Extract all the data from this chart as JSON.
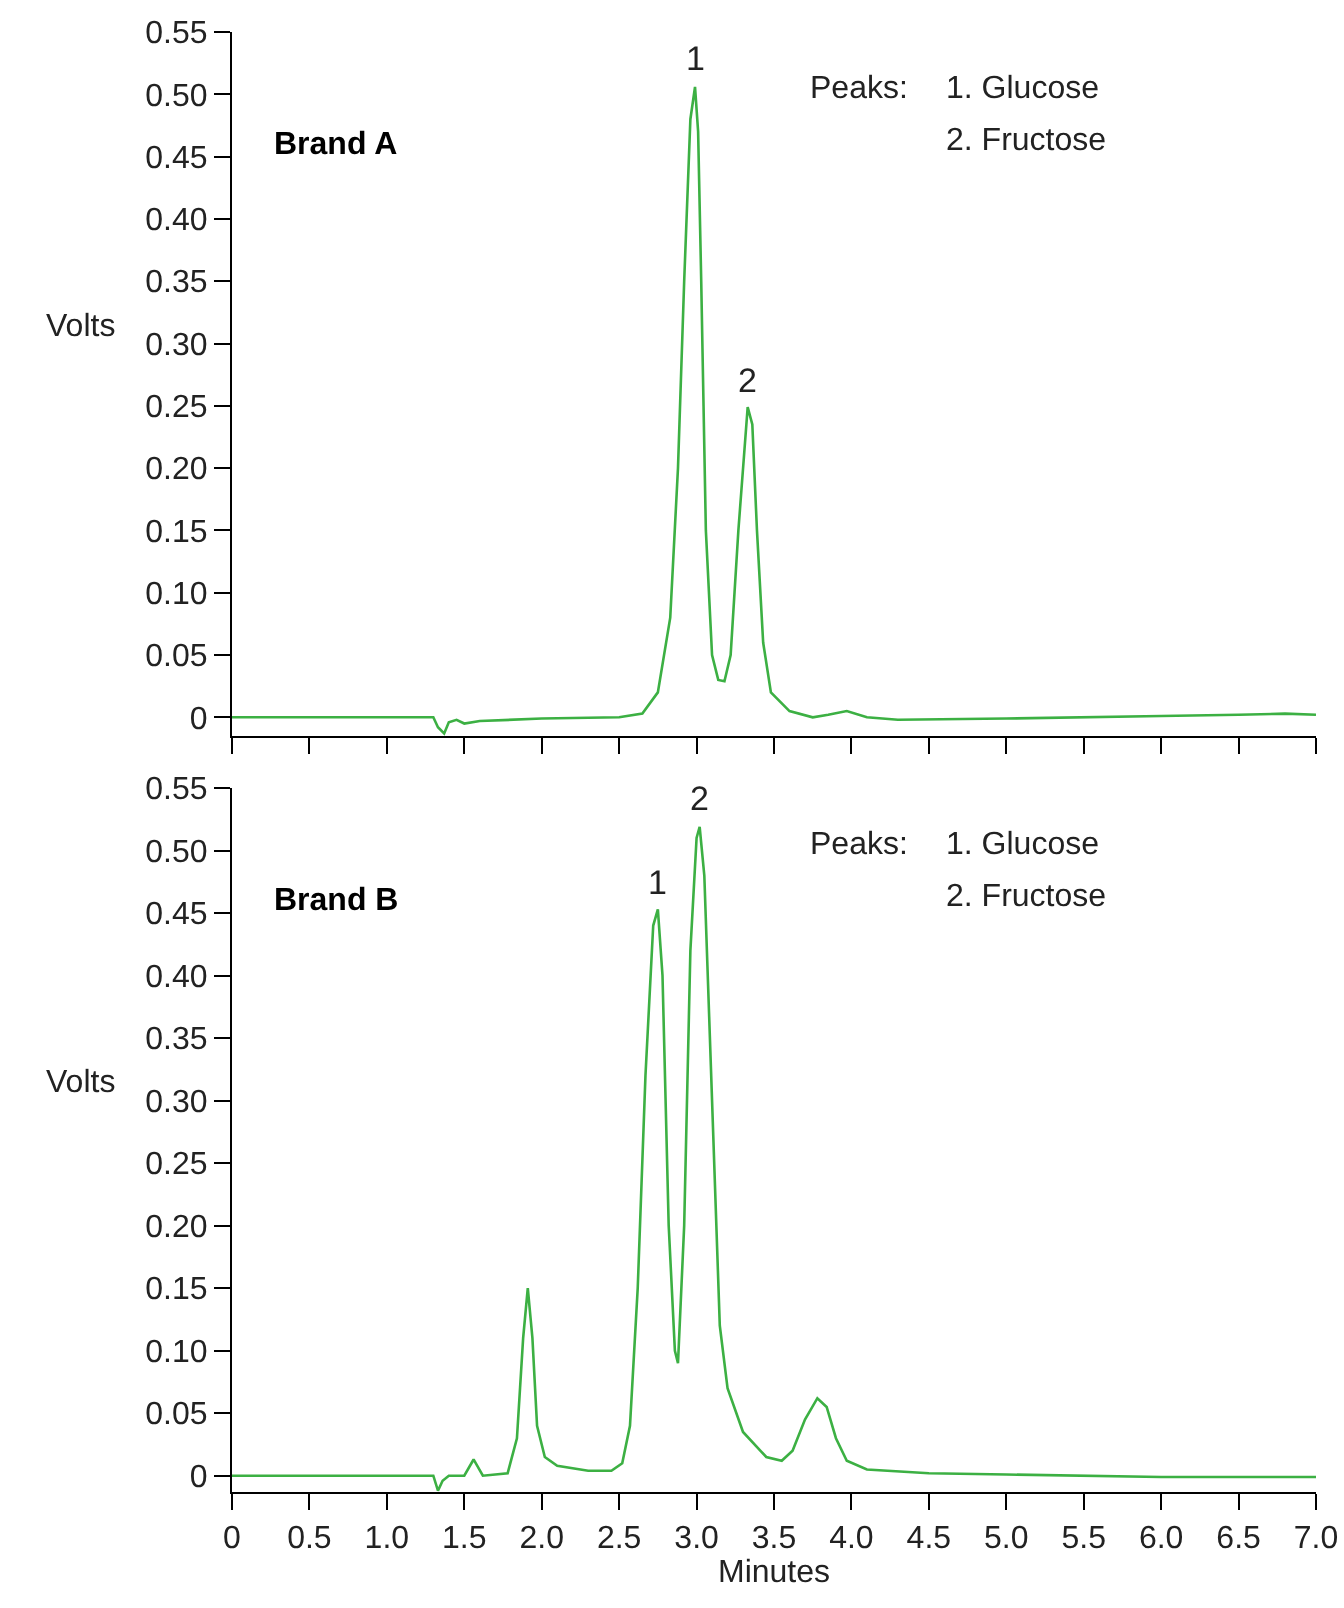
{
  "chart_data": [
    {
      "type": "line",
      "ylabel": "Volts",
      "annotations": [
        "Brand A",
        "Peaks:",
        "1. Glucose",
        "2. Fructose",
        {
          "text": "1",
          "x": 2.99,
          "y": 0.506
        },
        {
          "text": "2",
          "x": 3.33,
          "y": 0.249
        }
      ],
      "tick_labels": "y",
      "grid": false,
      "legend": false,
      "marker": "none",
      "line_style": "solid",
      "xlim": [
        0,
        7
      ],
      "xticks": [
        0,
        0.5,
        {
          "value": 1,
          "label": null
        },
        {
          "value": 1.5,
          "label": null
        },
        {
          "value": 2,
          "label": null
        },
        {
          "value": 2.5,
          "label": null
        },
        {
          "value": 3,
          "label": null
        },
        {
          "value": 3.5,
          "label": null
        },
        {
          "value": 4,
          "label": null
        },
        {
          "value": 4.5,
          "label": null
        },
        {
          "value": 5,
          "label": null
        },
        {
          "value": 5.5,
          "label": null
        },
        {
          "value": 6,
          "label": null
        },
        {
          "value": 6.5,
          "label": null
        },
        {
          "value": 7,
          "label": null
        }
      ],
      "ylim": [
        -0.015,
        0.55
      ],
      "yticks": [
        0,
        0.05,
        {
          "value": 0.1,
          "label": "0.10"
        },
        0.15,
        {
          "value": 0.2,
          "label": "0.20"
        },
        0.25,
        {
          "value": 0.3,
          "label": "0.30"
        },
        0.35,
        {
          "value": 0.4,
          "label": "0.40"
        },
        0.45,
        {
          "value": 0.5,
          "label": "0.50"
        },
        0.55
      ],
      "series": [
        {
          "color": "#3cb043",
          "x": [
            0,
            1.3,
            1.33,
            1.37,
            1.4,
            1.45,
            1.5,
            1.6,
            2.0,
            2.5,
            2.65,
            2.75,
            2.83,
            2.88,
            2.92,
            2.96,
            2.99,
            3.01,
            3.03,
            3.06,
            3.1,
            3.14,
            3.18,
            3.22,
            3.27,
            3.33,
            3.36,
            3.39,
            3.43,
            3.48,
            3.6,
            3.75,
            3.85,
            3.97,
            4.1,
            4.3,
            5.0,
            6.0,
            6.5,
            6.8,
            7.0
          ],
          "values": [
            0,
            0,
            -0.008,
            -0.013,
            -0.004,
            -0.002,
            -0.005,
            -0.003,
            -0.001,
            0,
            0.003,
            0.02,
            0.08,
            0.2,
            0.35,
            0.48,
            0.506,
            0.47,
            0.35,
            0.15,
            0.05,
            0.03,
            0.029,
            0.05,
            0.15,
            0.249,
            0.235,
            0.15,
            0.06,
            0.02,
            0.005,
            0,
            0.002,
            0.005,
            0,
            -0.002,
            -0.001,
            0.001,
            0.002,
            0.003,
            0.002
          ]
        }
      ]
    },
    {
      "type": "line",
      "xlabel": "Minutes",
      "ylabel": "Volts",
      "annotations": [
        "Brand B",
        "Peaks:",
        "1. Glucose",
        "2. Fructose",
        {
          "text": "1",
          "x": 2.75,
          "y": 0.453
        },
        {
          "text": "2",
          "x": 3.02,
          "y": 0.519
        }
      ],
      "grid": false,
      "legend": false,
      "marker": "none",
      "line_style": "solid",
      "xlim": [
        0,
        7
      ],
      "xticks": [
        0,
        0.5,
        {
          "value": 1,
          "label": "1.0"
        },
        1.5,
        {
          "value": 2,
          "label": "2.0"
        },
        2.5,
        {
          "value": 3,
          "label": "3.0"
        },
        3.5,
        {
          "value": 4,
          "label": "4.0"
        },
        4.5,
        {
          "value": 5,
          "label": "5.0"
        },
        5.5,
        {
          "value": 6,
          "label": "6.0"
        },
        6.5,
        {
          "value": 7,
          "label": "7.0"
        }
      ],
      "ylim": [
        -0.013,
        0.55
      ],
      "yticks": [
        0,
        0.05,
        {
          "value": 0.1,
          "label": "0.10"
        },
        0.15,
        {
          "value": 0.2,
          "label": "0.20"
        },
        0.25,
        {
          "value": 0.3,
          "label": "0.30"
        },
        0.35,
        {
          "value": 0.4,
          "label": "0.40"
        },
        0.45,
        {
          "value": 0.5,
          "label": "0.50"
        },
        0.55
      ],
      "series": [
        {
          "color": "#3cb043",
          "x": [
            0,
            1.3,
            1.33,
            1.36,
            1.4,
            1.5,
            1.56,
            1.62,
            1.78,
            1.84,
            1.88,
            1.91,
            1.94,
            1.97,
            2.02,
            2.1,
            2.3,
            2.45,
            2.52,
            2.57,
            2.62,
            2.67,
            2.72,
            2.75,
            2.78,
            2.82,
            2.86,
            2.88,
            2.92,
            2.96,
            3.0,
            3.02,
            3.05,
            3.1,
            3.15,
            3.2,
            3.3,
            3.45,
            3.55,
            3.62,
            3.7,
            3.78,
            3.84,
            3.9,
            3.97,
            4.1,
            4.5,
            5.0,
            6.0,
            7.0
          ],
          "values": [
            0,
            0,
            -0.012,
            -0.004,
            0,
            0,
            0.013,
            0,
            0.002,
            0.03,
            0.11,
            0.15,
            0.11,
            0.04,
            0.015,
            0.008,
            0.004,
            0.004,
            0.01,
            0.04,
            0.15,
            0.32,
            0.44,
            0.453,
            0.4,
            0.2,
            0.1,
            0.09,
            0.2,
            0.42,
            0.51,
            0.519,
            0.48,
            0.3,
            0.12,
            0.07,
            0.035,
            0.015,
            0.012,
            0.02,
            0.045,
            0.062,
            0.055,
            0.03,
            0.012,
            0.005,
            0.002,
            0.001,
            -0.001,
            -0.001
          ]
        }
      ]
    }
  ]
}
